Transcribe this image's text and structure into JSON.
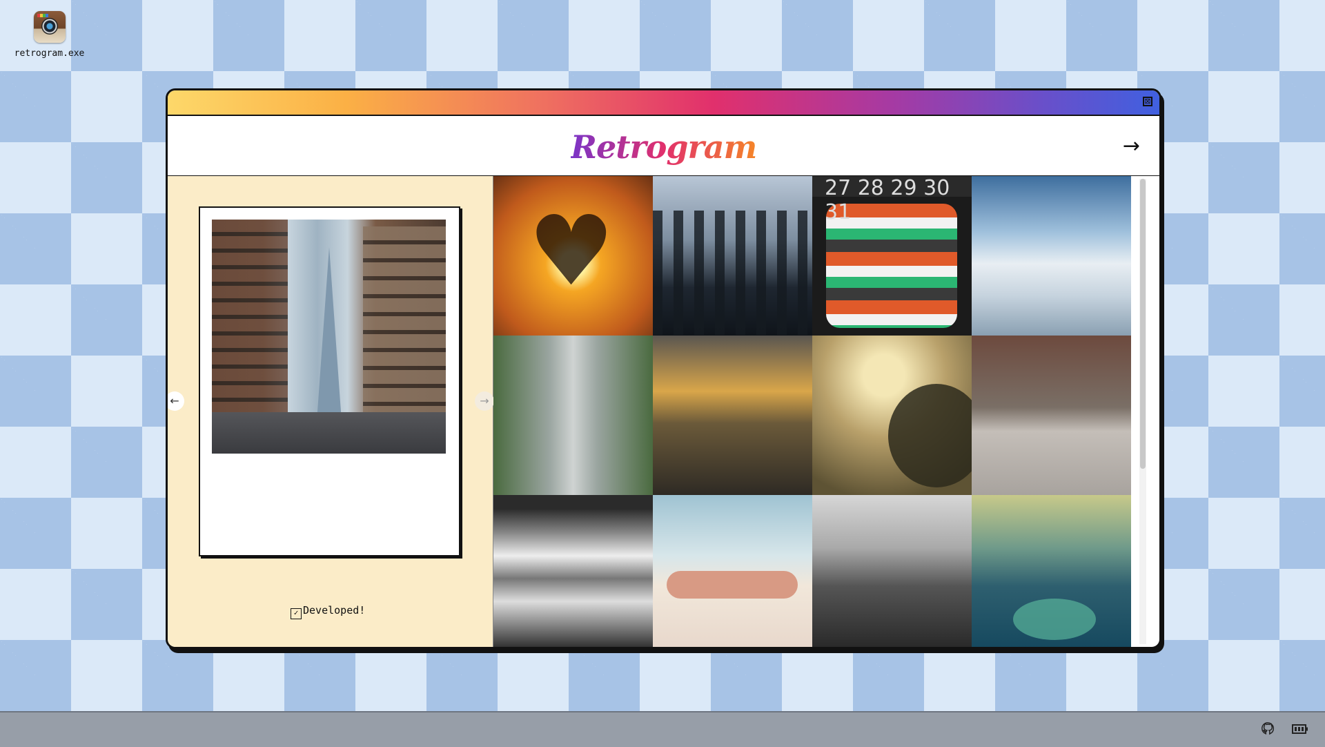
{
  "desktop": {
    "icon_label": "retrogram.exe"
  },
  "window": {
    "close_symbol": "⊠",
    "app_name": "Retrogram",
    "next_symbol": "→",
    "nav_prev_symbol": "←",
    "nav_next_symbol": "→",
    "developed_label": "Developed!",
    "checkbox_symbol": "✓"
  },
  "grid": {
    "calendar_text": "27 28 29 30 31"
  },
  "colors": {
    "titlebar_gradient": [
      "#fdd86a",
      "#fbb045",
      "#ef7060",
      "#e1306c",
      "#a63aa3",
      "#6a4fc9",
      "#4060e0"
    ],
    "left_pane_bg": "#fbecc8",
    "taskbar_bg": "#979ea8"
  },
  "icons": {
    "desktop": "instagram-camera-icon",
    "tray": [
      "github-icon",
      "battery-icon"
    ]
  }
}
